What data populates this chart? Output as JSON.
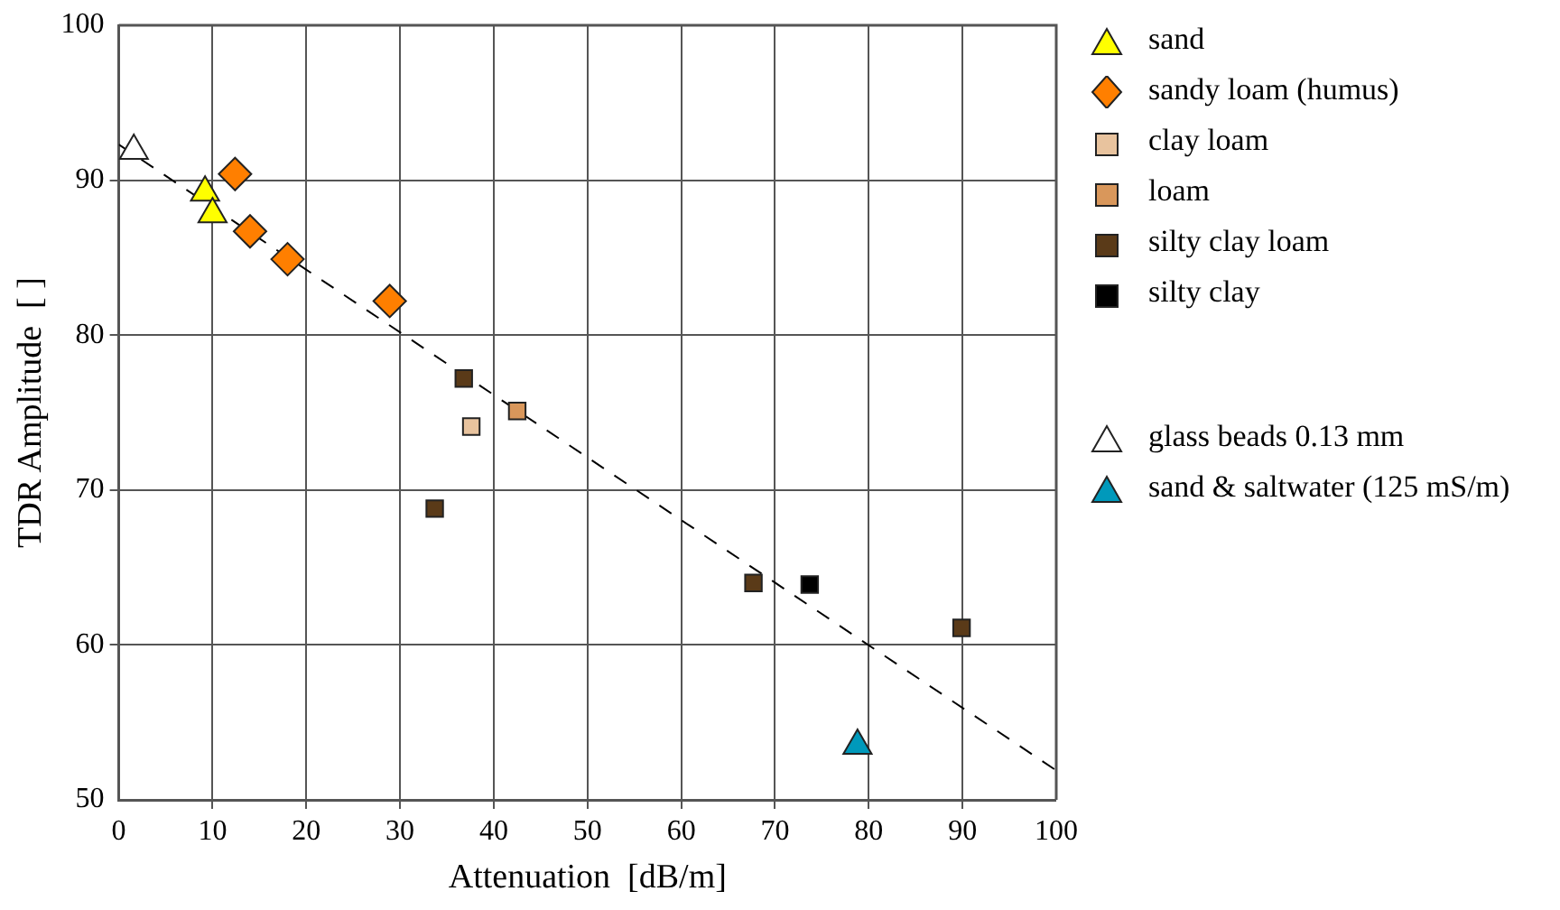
{
  "chart_data": {
    "type": "scatter",
    "xlabel": "Attenuation  [dB/m]",
    "ylabel": "TDR Amplitude  [ ]",
    "xlim": [
      0,
      100
    ],
    "xticks": [
      0,
      10,
      20,
      30,
      40,
      50,
      60,
      70,
      80,
      90,
      100
    ],
    "ylim": [
      50,
      100
    ],
    "yticks": [
      50,
      60,
      70,
      80,
      90,
      100
    ],
    "grid": true,
    "legend": "right",
    "series": [
      {
        "name": "sand",
        "color": "#ffff00",
        "marker": "triangle",
        "x": [
          9.2,
          10.0
        ],
        "values": [
          89.2,
          87.8
        ]
      },
      {
        "name": "sandy loam (humus)",
        "color": "#ff7f00",
        "marker": "diamond",
        "x": [
          12.4,
          14.0,
          18.0,
          28.9
        ],
        "values": [
          90.4,
          86.7,
          84.9,
          82.2
        ]
      },
      {
        "name": "clay loam",
        "color": "#e8c39e",
        "marker": "square",
        "x": [
          37.6
        ],
        "values": [
          74.1
        ]
      },
      {
        "name": "loam",
        "color": "#d9975b",
        "marker": "square",
        "x": [
          42.5
        ],
        "values": [
          75.1
        ]
      },
      {
        "name": "silty clay loam",
        "color": "#5a3a18",
        "marker": "square",
        "x": [
          36.8,
          33.7,
          67.7,
          89.9
        ],
        "values": [
          77.2,
          68.8,
          64.0,
          61.1
        ]
      },
      {
        "name": "silty clay",
        "color": "#000000",
        "marker": "square",
        "x": [
          73.7
        ],
        "values": [
          63.9
        ]
      },
      {
        "name": "glass beads 0.13 mm",
        "color": "#ffffff",
        "marker": "triangle",
        "x": [
          1.6
        ],
        "values": [
          91.9
        ]
      },
      {
        "name": "sand & saltwater (125 mS/m)",
        "color": "#0099bb",
        "marker": "triangle",
        "x": [
          78.8
        ],
        "values": [
          53.5
        ]
      },
      {
        "type": "line",
        "color": "#000000",
        "marker": "none",
        "line_style": "dashed",
        "x": [
          0,
          100
        ],
        "values": [
          92.3,
          51.9
        ]
      }
    ]
  }
}
